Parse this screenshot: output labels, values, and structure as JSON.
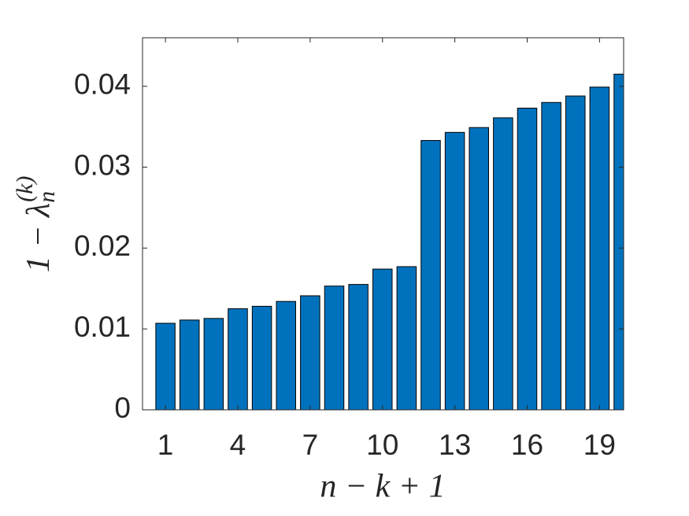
{
  "chart_data": {
    "type": "bar",
    "x": [
      1,
      2,
      3,
      4,
      5,
      6,
      7,
      8,
      9,
      10,
      11,
      12,
      13,
      14,
      15,
      16,
      17,
      18,
      19,
      20
    ],
    "values": [
      0.0107,
      0.0111,
      0.0113,
      0.0125,
      0.0128,
      0.0134,
      0.0141,
      0.0153,
      0.0155,
      0.0174,
      0.0177,
      0.0333,
      0.0343,
      0.0349,
      0.0361,
      0.0373,
      0.038,
      0.0388,
      0.0399,
      0.0415
    ],
    "color": "#0072bd",
    "xlim": [
      0.05,
      20
    ],
    "xticks": [
      1,
      4,
      7,
      10,
      13,
      16,
      19
    ],
    "ylim": [
      0,
      0.046
    ],
    "yticks": [
      0,
      0.01,
      0.02,
      0.03,
      0.04
    ],
    "xlabel": "n − k + 1",
    "ylabel": {
      "base": "1 − λ",
      "sub": "n",
      "sup": "(k)"
    }
  }
}
